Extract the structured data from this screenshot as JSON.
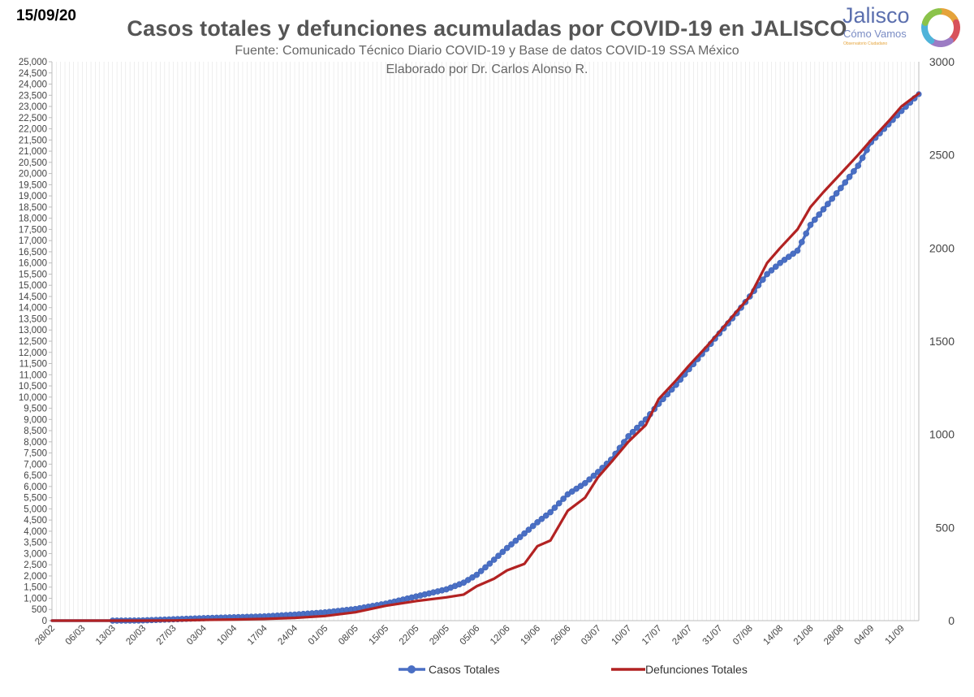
{
  "header": {
    "date": "15/09/20",
    "title": "Casos totales y defunciones acumuladas por COVID-19 en JALISCO",
    "subtitle": "Fuente: Comunicado Técnico Diario COVID-19 y Base de datos COVID-19 SSA México",
    "author": "Elaborado por Dr. Carlos Alonso R."
  },
  "logo": {
    "name": "Jalisco",
    "tagline": "Cómo Vamos",
    "small_text": "Observatorio Ciudadano",
    "colors": [
      "#5b6fae",
      "#e5a33a",
      "#d8525b",
      "#8bc34a",
      "#4fb3d9",
      "#9c7cc4"
    ]
  },
  "chart_data": {
    "type": "line",
    "x_type": "date",
    "x_range": [
      "2020-02-28",
      "2020-09-15"
    ],
    "x_tick_labels": [
      "28/02",
      "06/03",
      "13/03",
      "20/03",
      "27/03",
      "03/04",
      "10/04",
      "17/04",
      "24/04",
      "01/05",
      "08/05",
      "15/05",
      "22/05",
      "29/05",
      "05/06",
      "12/06",
      "19/06",
      "26/06",
      "03/07",
      "10/07",
      "17/07",
      "24/07",
      "31/07",
      "07/08",
      "14/08",
      "21/08",
      "28/08",
      "04/09",
      "11/09"
    ],
    "y_left": {
      "min": 0,
      "max": 25000,
      "step": 500
    },
    "y_right": {
      "min": 0,
      "max": 3000,
      "step": 500
    },
    "grid": "vertical lines at each tick",
    "legend_position": "bottom",
    "series": [
      {
        "name": "Casos Totales",
        "axis": "left",
        "color": "#4a6fc4",
        "marker": "circle",
        "points": [
          [
            "2020-02-28",
            0
          ],
          [
            "2020-03-13",
            0
          ],
          [
            "2020-03-19",
            5
          ],
          [
            "2020-03-22",
            25
          ],
          [
            "2020-03-27",
            60
          ],
          [
            "2020-04-03",
            110
          ],
          [
            "2020-04-10",
            150
          ],
          [
            "2020-04-17",
            190
          ],
          [
            "2020-04-24",
            270
          ],
          [
            "2020-05-01",
            370
          ],
          [
            "2020-05-08",
            520
          ],
          [
            "2020-05-15",
            760
          ],
          [
            "2020-05-22",
            1080
          ],
          [
            "2020-05-29",
            1400
          ],
          [
            "2020-06-02",
            1700
          ],
          [
            "2020-06-05",
            2050
          ],
          [
            "2020-06-08",
            2550
          ],
          [
            "2020-06-12",
            3250
          ],
          [
            "2020-06-16",
            3900
          ],
          [
            "2020-06-19",
            4400
          ],
          [
            "2020-06-22",
            4850
          ],
          [
            "2020-06-26",
            5650
          ],
          [
            "2020-06-30",
            6150
          ],
          [
            "2020-07-03",
            6650
          ],
          [
            "2020-07-06",
            7200
          ],
          [
            "2020-07-10",
            8250
          ],
          [
            "2020-07-14",
            9000
          ],
          [
            "2020-07-17",
            9700
          ],
          [
            "2020-07-21",
            10550
          ],
          [
            "2020-07-24",
            11250
          ],
          [
            "2020-07-28",
            12150
          ],
          [
            "2020-07-31",
            12850
          ],
          [
            "2020-08-04",
            13750
          ],
          [
            "2020-08-07",
            14500
          ],
          [
            "2020-08-11",
            15500
          ],
          [
            "2020-08-14",
            16000
          ],
          [
            "2020-08-18",
            16550
          ],
          [
            "2020-08-21",
            17700
          ],
          [
            "2020-08-24",
            18400
          ],
          [
            "2020-08-28",
            19350
          ],
          [
            "2020-09-01",
            20350
          ],
          [
            "2020-09-04",
            21400
          ],
          [
            "2020-09-08",
            22200
          ],
          [
            "2020-09-11",
            22800
          ],
          [
            "2020-09-15",
            23550
          ]
        ]
      },
      {
        "name": "Defunciones Totales",
        "axis": "right",
        "color": "#b22222",
        "marker": "none",
        "points": [
          [
            "2020-02-28",
            0
          ],
          [
            "2020-03-19",
            0
          ],
          [
            "2020-03-27",
            1
          ],
          [
            "2020-04-03",
            4
          ],
          [
            "2020-04-10",
            6
          ],
          [
            "2020-04-17",
            9
          ],
          [
            "2020-04-24",
            15
          ],
          [
            "2020-05-01",
            25
          ],
          [
            "2020-05-08",
            45
          ],
          [
            "2020-05-15",
            80
          ],
          [
            "2020-05-22",
            105
          ],
          [
            "2020-05-29",
            125
          ],
          [
            "2020-06-02",
            140
          ],
          [
            "2020-06-05",
            185
          ],
          [
            "2020-06-09",
            225
          ],
          [
            "2020-06-12",
            270
          ],
          [
            "2020-06-16",
            305
          ],
          [
            "2020-06-19",
            400
          ],
          [
            "2020-06-22",
            430
          ],
          [
            "2020-06-26",
            590
          ],
          [
            "2020-06-30",
            660
          ],
          [
            "2020-07-03",
            770
          ],
          [
            "2020-07-06",
            850
          ],
          [
            "2020-07-10",
            960
          ],
          [
            "2020-07-14",
            1050
          ],
          [
            "2020-07-17",
            1190
          ],
          [
            "2020-07-21",
            1290
          ],
          [
            "2020-07-24",
            1370
          ],
          [
            "2020-07-28",
            1470
          ],
          [
            "2020-07-31",
            1550
          ],
          [
            "2020-08-04",
            1660
          ],
          [
            "2020-08-07",
            1740
          ],
          [
            "2020-08-11",
            1920
          ],
          [
            "2020-08-14",
            2000
          ],
          [
            "2020-08-18",
            2100
          ],
          [
            "2020-08-21",
            2220
          ],
          [
            "2020-08-24",
            2300
          ],
          [
            "2020-08-28",
            2400
          ],
          [
            "2020-09-01",
            2500
          ],
          [
            "2020-09-04",
            2580
          ],
          [
            "2020-09-08",
            2680
          ],
          [
            "2020-09-11",
            2760
          ],
          [
            "2020-09-15",
            2830
          ]
        ]
      }
    ]
  }
}
